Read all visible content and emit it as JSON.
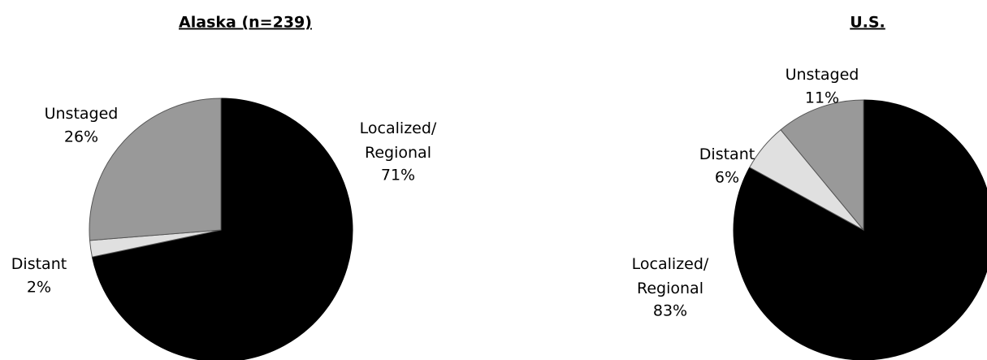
{
  "chart_data": [
    {
      "type": "pie",
      "title": "Alaska (n=239)",
      "categories": [
        "Localized/Regional",
        "Distant",
        "Unstaged"
      ],
      "values": [
        71,
        2,
        26
      ],
      "value_labels": [
        "71%",
        "2%",
        "26%"
      ],
      "colors": [
        "#000000",
        "#e0e0e0",
        "#999999"
      ]
    },
    {
      "type": "pie",
      "title": "U.S.",
      "categories": [
        "Localized/Regional",
        "Distant",
        "Unstaged"
      ],
      "values": [
        83,
        6,
        11
      ],
      "value_labels": [
        "83%",
        "6%",
        "11%"
      ],
      "colors": [
        "#000000",
        "#e0e0e0",
        "#999999"
      ]
    }
  ]
}
